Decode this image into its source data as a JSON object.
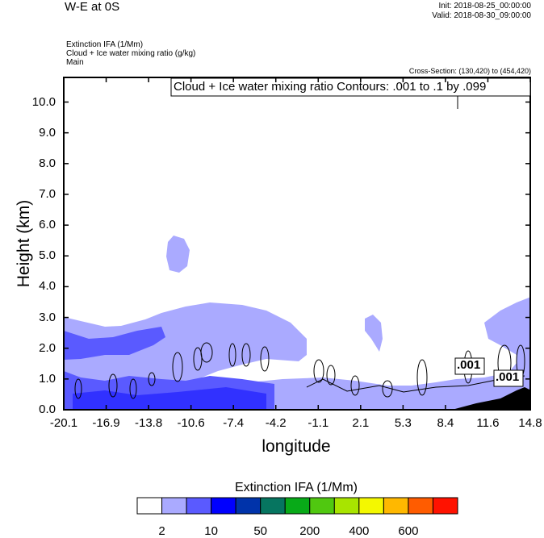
{
  "header": {
    "title": "W-E at 0S",
    "init": "Init: 2018-08-25_00:00:00",
    "valid": "Valid: 2018-08-30_09:00:00",
    "subtitles": [
      "Extinction IFA   (1/Mm)",
      "Cloud + Ice water mixing ratio   (g/kg)",
      "Main"
    ],
    "cross_section": "Cross-Section: (130,420) to (454,420)"
  },
  "chart_data": {
    "type": "heatmap",
    "title": "W-E at 0S",
    "xlabel": "longitude",
    "ylabel": "Height (km)",
    "xlim": [
      -20.1,
      14.8
    ],
    "ylim": [
      0,
      10.8
    ],
    "xticks": [
      "-20.1",
      "-16.9",
      "-13.8",
      "-10.6",
      "-7.4",
      "-4.2",
      "-1.1",
      "2.1",
      "5.3",
      "8.4",
      "11.6",
      "14.8"
    ],
    "yticks": [
      "0.0",
      "1.0",
      "2.0",
      "3.0",
      "4.0",
      "5.0",
      "6.0",
      "7.0",
      "8.0",
      "9.0",
      "10.0"
    ],
    "ytick_values": [
      0,
      1,
      2,
      3,
      4,
      5,
      6,
      7,
      8,
      9,
      10
    ],
    "contour_info": "Cloud + Ice water mixing ratio Contours: .001 to .1 by .099",
    "contour_labels": [
      ".001",
      ".001"
    ],
    "colorbar": {
      "title": "Extinction IFA  (1/Mm)",
      "colors": [
        "#ffffff",
        "#aaaaff",
        "#5a5aff",
        "#0000ff",
        "#0033aa",
        "#067560",
        "#08aa18",
        "#50c810",
        "#a8e400",
        "#f4f800",
        "#ffb800",
        "#ff5c00",
        "#ff1200"
      ],
      "labels": [
        "2",
        "10",
        "50",
        "200",
        "400",
        "600"
      ],
      "label_boundaries": [
        1,
        3,
        5,
        7,
        9,
        11
      ]
    }
  }
}
